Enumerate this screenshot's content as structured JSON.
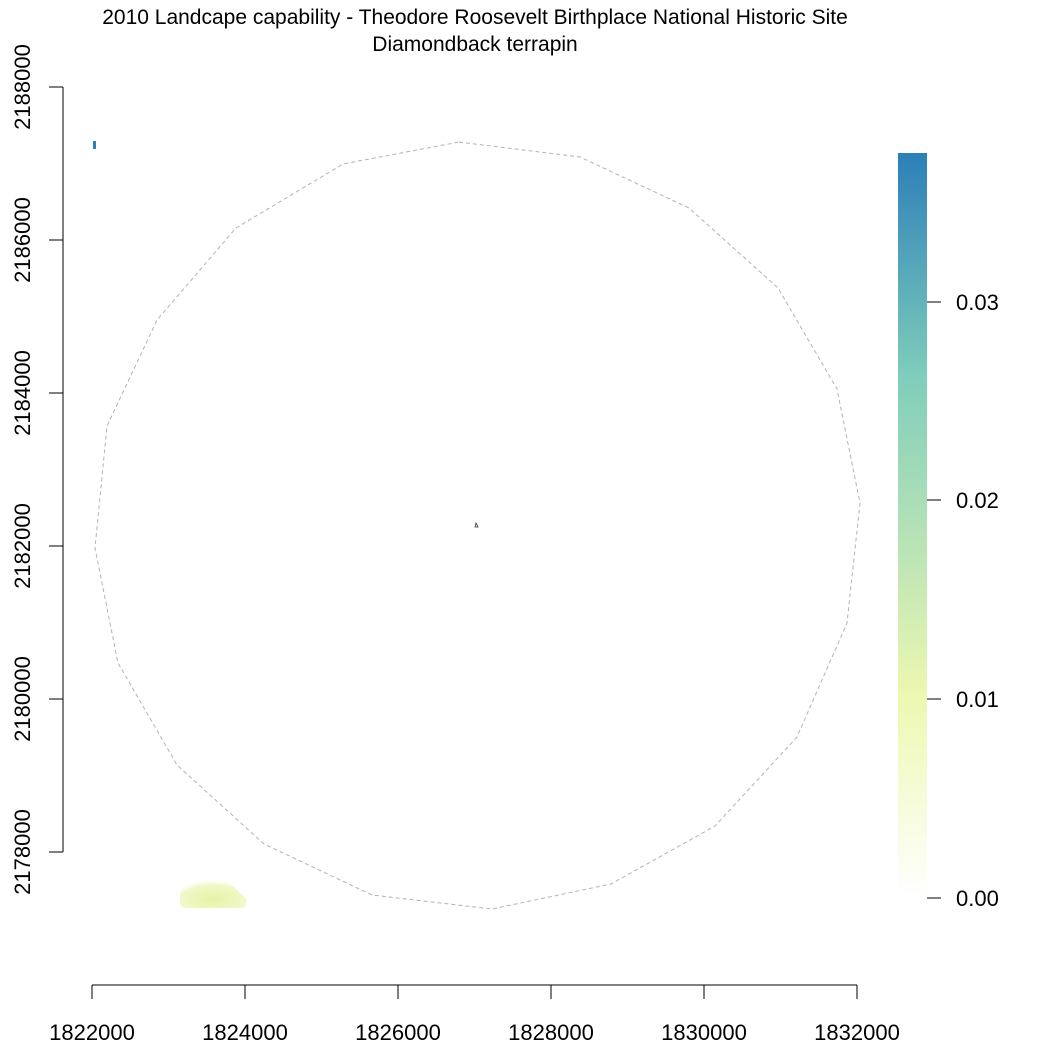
{
  "title": "2010 Landcape capability - Theodore Roosevelt Birthplace National Historic Site",
  "subtitle": "Diamondback terrapin",
  "map": {
    "x_ticks": [
      "1822000",
      "1824000",
      "1826000",
      "1828000",
      "1830000",
      "1832000"
    ],
    "y_ticks": [
      "2178000",
      "2180000",
      "2182000",
      "2184000",
      "2186000",
      "2188000"
    ],
    "x_range": [
      1822000,
      1832000
    ],
    "y_range": [
      2178000,
      2188000
    ],
    "buffer_circle": {
      "style": "dashed",
      "color": "#b3b3b3"
    },
    "site_marker": {
      "x": 1827000,
      "y": 2182250
    },
    "raster_patches": [
      {
        "name": "top-left-cell",
        "x": [
          1822000,
          1822040
        ],
        "y": [
          2187150,
          2187250
        ],
        "value": 0.037
      },
      {
        "name": "bottom-left-area",
        "x": [
          1823150,
          1824000
        ],
        "y": [
          2177400,
          2177800
        ],
        "value": 0.008
      }
    ]
  },
  "legend": {
    "ticks": [
      "0.00",
      "0.01",
      "0.02",
      "0.03"
    ],
    "tick_values": [
      0.0,
      0.01,
      0.02,
      0.03
    ],
    "max_value": 0.037,
    "colors": [
      "#ffffff",
      "#edf8b1",
      "#7fcdbb",
      "#2c7fb8"
    ]
  }
}
